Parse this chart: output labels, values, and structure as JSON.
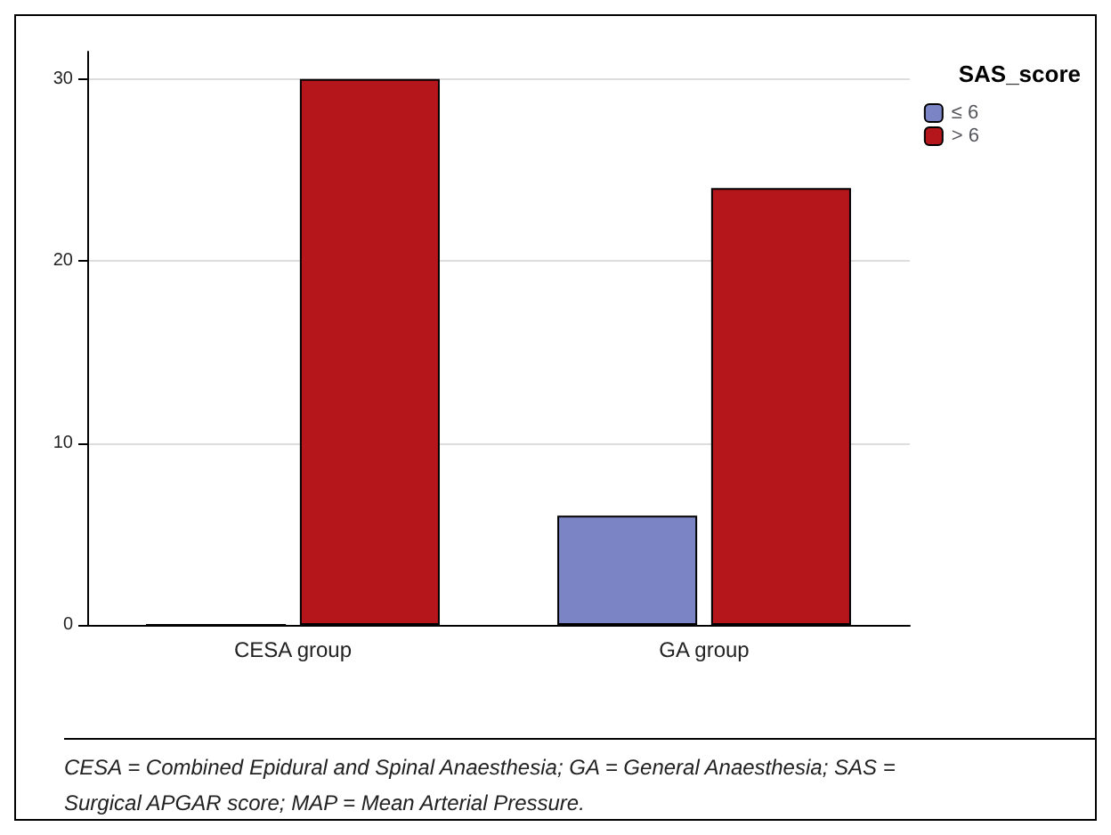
{
  "chart_data": {
    "type": "bar",
    "categories": [
      "CESA group",
      "GA group"
    ],
    "series": [
      {
        "name": "≤ 6",
        "color": "#7b84c4",
        "values": [
          0,
          6
        ]
      },
      {
        "name": "> 6",
        "color": "#b5161c",
        "values": [
          30,
          24
        ]
      }
    ],
    "ylim": [
      0,
      31.5
    ],
    "yticks": [
      0,
      10,
      20,
      30
    ],
    "grid": "y",
    "legend": "top right",
    "legend_title": "SAS_score",
    "annotations": [
      "CESA = Combined Epidural and Spinal Anaesthesia; GA = General Anaesthesia; SAS = Surgical APGAR score; MAP = Mean Arterial Pressure."
    ]
  }
}
